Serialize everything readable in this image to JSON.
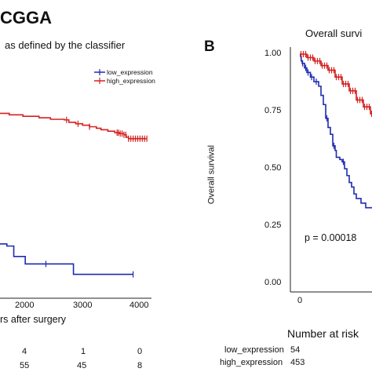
{
  "chart_data": [
    {
      "panel": "A",
      "type": "line",
      "title": "CGGA",
      "subtitle": "as defined by the classifier",
      "xlabel": "rs after surgery",
      "x_ticks": [
        2000,
        3000,
        4000
      ],
      "xlim": [
        1000,
        4300
      ],
      "ylim": [
        0,
        1
      ],
      "legend_placement": "top-right",
      "series": [
        {
          "name": "low_expression",
          "color": "#1f2bb0",
          "points": [
            [
              1000,
              0.182
            ],
            [
              1150,
              0.175
            ],
            [
              1300,
              0.14
            ],
            [
              1500,
              0.14
            ],
            [
              1550,
              0.115
            ],
            [
              2550,
              0.115
            ],
            [
              2600,
              0.08
            ],
            [
              3900,
              0.08
            ]
          ],
          "censor_x": [
            2000,
            3900
          ]
        },
        {
          "name": "high_expression",
          "color": "#d42020",
          "points": [
            [
              1000,
              0.62
            ],
            [
              1200,
              0.615
            ],
            [
              1500,
              0.61
            ],
            [
              1800,
              0.61
            ],
            [
              1850,
              0.605
            ],
            [
              2100,
              0.6
            ],
            [
              2400,
              0.598
            ],
            [
              2500,
              0.59
            ],
            [
              2650,
              0.585
            ],
            [
              2800,
              0.58
            ],
            [
              2950,
              0.575
            ],
            [
              3100,
              0.57
            ],
            [
              3200,
              0.565
            ],
            [
              3350,
              0.56
            ],
            [
              3500,
              0.555
            ],
            [
              3600,
              0.552
            ],
            [
              3700,
              0.548
            ],
            [
              3750,
              0.54
            ],
            [
              3800,
              0.535
            ],
            [
              4200,
              0.535
            ]
          ],
          "censor_x": [
            2450,
            2700,
            2950,
            3550,
            3580,
            3620,
            3660,
            3700,
            3740,
            3800,
            3850,
            3900,
            3950,
            4000,
            4050,
            4100,
            4150,
            4200
          ]
        }
      ],
      "risk_table": {
        "rows": [
          {
            "values": [
              "4",
              "1",
              "0"
            ]
          },
          {
            "values": [
              "55",
              "45",
              "8"
            ]
          }
        ]
      }
    },
    {
      "panel": "B",
      "panel_label": "B",
      "type": "line",
      "title": "Overall survi",
      "ylabel": "Overall survival",
      "y_ticks": [
        "0.00",
        "0.25",
        "0.50",
        "0.75",
        "1.00"
      ],
      "x_ticks": [
        "0"
      ],
      "ylim": [
        0,
        1
      ],
      "annotation": "p = 0.00018",
      "series": [
        {
          "name": "low_expression",
          "color": "#1f2bb0",
          "points": [
            [
              0,
              1.0
            ],
            [
              0.03,
              0.99
            ],
            [
              0.06,
              0.97
            ],
            [
              0.1,
              0.96
            ],
            [
              0.2,
              0.94
            ],
            [
              0.3,
              0.92
            ],
            [
              0.45,
              0.9
            ],
            [
              0.6,
              0.88
            ],
            [
              0.8,
              0.86
            ],
            [
              0.9,
              0.82
            ],
            [
              1.0,
              0.78
            ],
            [
              1.1,
              0.72
            ],
            [
              1.2,
              0.68
            ],
            [
              1.3,
              0.65
            ],
            [
              1.4,
              0.6
            ],
            [
              1.5,
              0.58
            ],
            [
              1.55,
              0.55
            ],
            [
              1.7,
              0.54
            ],
            [
              1.8,
              0.53
            ],
            [
              1.9,
              0.5
            ],
            [
              2.0,
              0.47
            ],
            [
              2.1,
              0.44
            ],
            [
              2.2,
              0.42
            ],
            [
              2.3,
              0.39
            ],
            [
              2.4,
              0.37
            ],
            [
              2.6,
              0.35
            ],
            [
              2.8,
              0.33
            ],
            [
              3.0,
              0.33
            ],
            [
              3.4,
              0.33
            ],
            [
              3.5,
              0.28
            ],
            [
              3.7,
              0.28
            ],
            [
              3.8,
              0.24
            ],
            [
              4.0,
              0.24
            ]
          ],
          "censor_x": [
            0.05,
            0.12,
            0.25,
            0.35,
            0.5,
            0.7,
            1.15,
            1.45,
            1.85,
            3.2
          ]
        },
        {
          "name": "high_expression",
          "color": "#d42020",
          "points": [
            [
              0,
              1.0
            ],
            [
              0.3,
              0.985
            ],
            [
              0.6,
              0.97
            ],
            [
              0.9,
              0.95
            ],
            [
              1.2,
              0.93
            ],
            [
              1.5,
              0.9
            ],
            [
              1.8,
              0.87
            ],
            [
              2.1,
              0.84
            ],
            [
              2.4,
              0.8
            ],
            [
              2.7,
              0.77
            ],
            [
              3.0,
              0.74
            ],
            [
              3.3,
              0.7
            ],
            [
              3.6,
              0.67
            ],
            [
              3.8,
              0.64
            ],
            [
              4.0,
              0.62
            ]
          ],
          "censor_x": [
            0.05,
            0.15,
            0.25,
            0.35,
            0.45,
            0.55,
            0.65,
            0.75,
            0.85,
            0.95,
            1.05,
            1.15,
            1.25,
            1.35,
            1.45,
            1.55,
            1.65,
            1.75,
            1.85,
            1.95,
            2.05,
            2.15,
            2.25,
            2.35,
            2.45,
            2.55,
            2.65,
            2.75,
            2.85,
            2.95,
            3.05,
            3.15,
            3.25,
            3.35,
            3.45,
            3.55,
            3.65,
            3.75,
            3.85,
            3.95
          ]
        }
      ],
      "risk_table": {
        "title": "Number at risk",
        "rows": [
          {
            "label": "low_expression",
            "values": [
              "54"
            ]
          },
          {
            "label": "high_expression",
            "values": [
              "453"
            ]
          }
        ]
      }
    }
  ]
}
